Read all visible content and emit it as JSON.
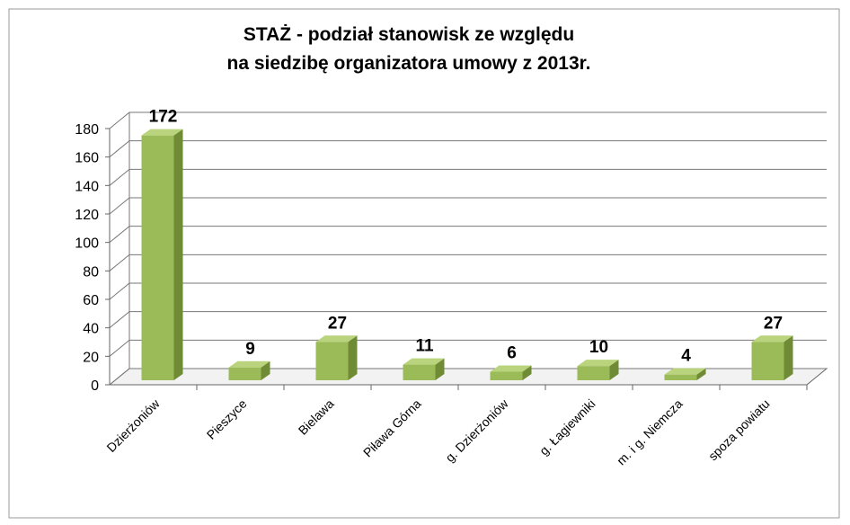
{
  "chart_data": {
    "type": "bar3d",
    "title": [
      "STAŻ -  podział stanowisk ze względu",
      "na siedzibę organizatora umowy z 2013r."
    ],
    "categories": [
      "Dzierżoniów",
      "Pieszyce",
      "Bielawa",
      "Piława Górna",
      "g. Dzierżoniów",
      "g. Łagiewniki",
      "m. i g. Niemcza",
      "spoza powiatu"
    ],
    "values": [
      172,
      9,
      27,
      11,
      6,
      10,
      4,
      27
    ],
    "color": "#9bbb59",
    "ylim": [
      0,
      180
    ],
    "yticks": [
      0,
      20,
      40,
      60,
      80,
      100,
      120,
      140,
      160,
      180
    ],
    "grid": true
  }
}
